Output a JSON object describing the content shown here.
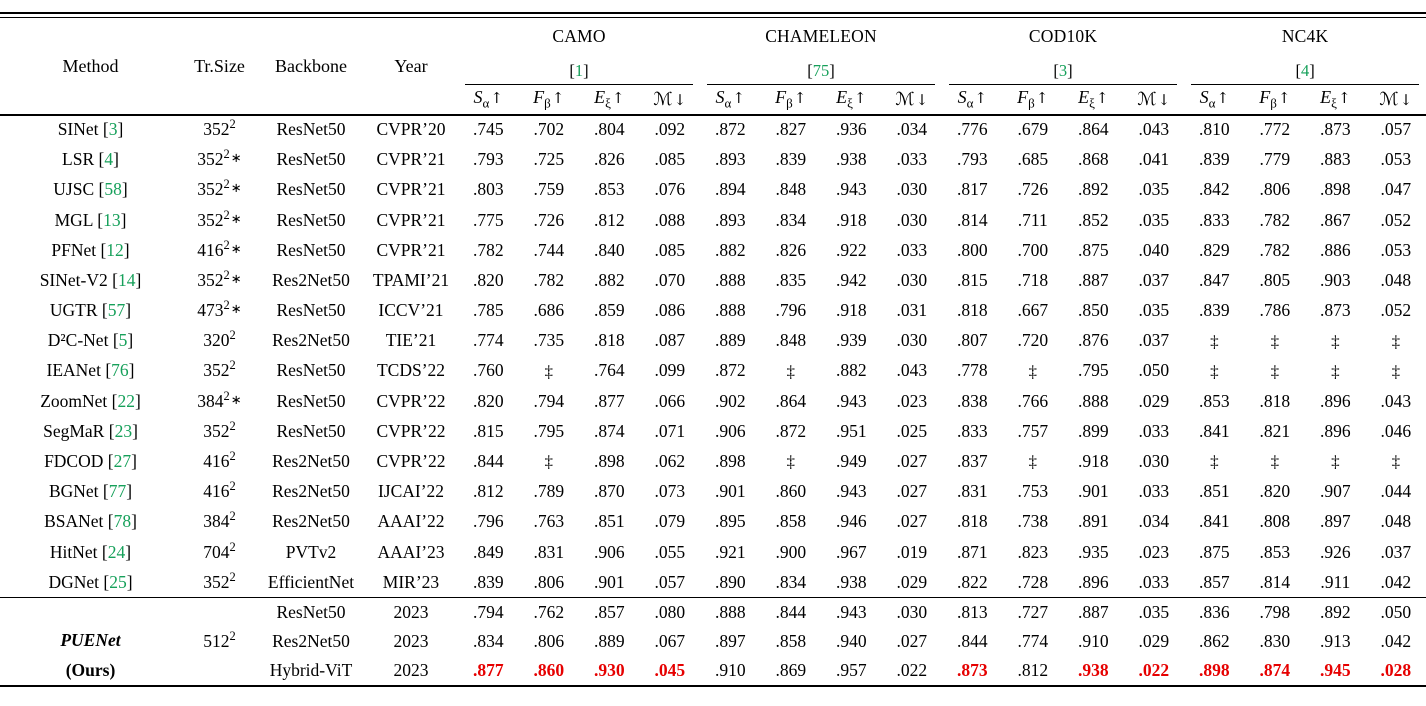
{
  "colors": {
    "cite_green": "#16a05a",
    "best_red": "#e60000",
    "text": "#000000"
  },
  "format": {
    "cite_open": "[",
    "cite_close": "]",
    "size_exp": "2",
    "star_char": "∗",
    "missing_marker": "‡"
  },
  "header": {
    "label_columns": [
      "Method",
      "Tr.Size",
      "Backbone",
      "Year"
    ],
    "dataset_groups": [
      {
        "name": "CAMO",
        "cite": "1"
      },
      {
        "name": "CHAMELEON",
        "cite": "75"
      },
      {
        "name": "COD10K",
        "cite": "3"
      },
      {
        "name": "NC4K",
        "cite": "4"
      }
    ],
    "metrics": [
      {
        "key": "s-alpha",
        "symbol": "S",
        "sub": "α",
        "dir": "↑",
        "script": false
      },
      {
        "key": "f-beta",
        "symbol": "F",
        "sub": "β",
        "dir": "↑",
        "script": false
      },
      {
        "key": "e-xi",
        "symbol": "E",
        "sub": "ξ",
        "dir": "↑",
        "script": false
      },
      {
        "key": "mae",
        "symbol": "ℳ",
        "sub": "",
        "dir": "↓",
        "script": true
      }
    ]
  },
  "rows": [
    {
      "method": "SINet",
      "cite": "3",
      "size": "352",
      "star": false,
      "backbone": "ResNet50",
      "year": "CVPR’20",
      "values": [
        ".745",
        ".702",
        ".804",
        ".092",
        ".872",
        ".827",
        ".936",
        ".034",
        ".776",
        ".679",
        ".864",
        ".043",
        ".810",
        ".772",
        ".873",
        ".057"
      ]
    },
    {
      "method": "LSR",
      "cite": "4",
      "size": "352",
      "star": true,
      "backbone": "ResNet50",
      "year": "CVPR’21",
      "values": [
        ".793",
        ".725",
        ".826",
        ".085",
        ".893",
        ".839",
        ".938",
        ".033",
        ".793",
        ".685",
        ".868",
        ".041",
        ".839",
        ".779",
        ".883",
        ".053"
      ]
    },
    {
      "method": "UJSC",
      "cite": "58",
      "size": "352",
      "star": true,
      "backbone": "ResNet50",
      "year": "CVPR’21",
      "values": [
        ".803",
        ".759",
        ".853",
        ".076",
        ".894",
        ".848",
        ".943",
        ".030",
        ".817",
        ".726",
        ".892",
        ".035",
        ".842",
        ".806",
        ".898",
        ".047"
      ]
    },
    {
      "method": "MGL",
      "cite": "13",
      "size": "352",
      "star": true,
      "backbone": "ResNet50",
      "year": "CVPR’21",
      "values": [
        ".775",
        ".726",
        ".812",
        ".088",
        ".893",
        ".834",
        ".918",
        ".030",
        ".814",
        ".711",
        ".852",
        ".035",
        ".833",
        ".782",
        ".867",
        ".052"
      ]
    },
    {
      "method": "PFNet",
      "cite": "12",
      "size": "416",
      "star": true,
      "backbone": "ResNet50",
      "year": "CVPR’21",
      "values": [
        ".782",
        ".744",
        ".840",
        ".085",
        ".882",
        ".826",
        ".922",
        ".033",
        ".800",
        ".700",
        ".875",
        ".040",
        ".829",
        ".782",
        ".886",
        ".053"
      ]
    },
    {
      "method": "SINet-V2",
      "cite": "14",
      "size": "352",
      "star": true,
      "backbone": "Res2Net50",
      "year": "TPAMI’21",
      "values": [
        ".820",
        ".782",
        ".882",
        ".070",
        ".888",
        ".835",
        ".942",
        ".030",
        ".815",
        ".718",
        ".887",
        ".037",
        ".847",
        ".805",
        ".903",
        ".048"
      ]
    },
    {
      "method": "UGTR",
      "cite": "57",
      "size": "473",
      "star": true,
      "backbone": "ResNet50",
      "year": "ICCV’21",
      "values": [
        ".785",
        ".686",
        ".859",
        ".086",
        ".888",
        ".796",
        ".918",
        ".031",
        ".818",
        ".667",
        ".850",
        ".035",
        ".839",
        ".786",
        ".873",
        ".052"
      ]
    },
    {
      "method": "D²C-Net",
      "cite": "5",
      "size": "320",
      "star": false,
      "backbone": "Res2Net50",
      "year": "TIE’21",
      "values": [
        ".774",
        ".735",
        ".818",
        ".087",
        ".889",
        ".848",
        ".939",
        ".030",
        ".807",
        ".720",
        ".876",
        ".037",
        "‡",
        "‡",
        "‡",
        "‡"
      ]
    },
    {
      "method": "IEANet",
      "cite": "76",
      "size": "352",
      "star": false,
      "backbone": "ResNet50",
      "year": "TCDS’22",
      "values": [
        ".760",
        "‡",
        ".764",
        ".099",
        ".872",
        "‡",
        ".882",
        ".043",
        ".778",
        "‡",
        ".795",
        ".050",
        "‡",
        "‡",
        "‡",
        "‡"
      ]
    },
    {
      "method": "ZoomNet",
      "cite": "22",
      "size": "384",
      "star": true,
      "backbone": "ResNet50",
      "year": "CVPR’22",
      "values": [
        ".820",
        ".794",
        ".877",
        ".066",
        ".902",
        ".864",
        ".943",
        ".023",
        ".838",
        ".766",
        ".888",
        ".029",
        ".853",
        ".818",
        ".896",
        ".043"
      ]
    },
    {
      "method": "SegMaR",
      "cite": "23",
      "size": "352",
      "star": false,
      "backbone": "ResNet50",
      "year": "CVPR’22",
      "values": [
        ".815",
        ".795",
        ".874",
        ".071",
        ".906",
        ".872",
        ".951",
        ".025",
        ".833",
        ".757",
        ".899",
        ".033",
        ".841",
        ".821",
        ".896",
        ".046"
      ]
    },
    {
      "method": "FDCOD",
      "cite": "27",
      "size": "416",
      "star": false,
      "backbone": "Res2Net50",
      "year": "CVPR’22",
      "values": [
        ".844",
        "‡",
        ".898",
        ".062",
        ".898",
        "‡",
        ".949",
        ".027",
        ".837",
        "‡",
        ".918",
        ".030",
        "‡",
        "‡",
        "‡",
        "‡"
      ]
    },
    {
      "method": "BGNet",
      "cite": "77",
      "size": "416",
      "star": false,
      "backbone": "Res2Net50",
      "year": "IJCAI’22",
      "values": [
        ".812",
        ".789",
        ".870",
        ".073",
        ".901",
        ".860",
        ".943",
        ".027",
        ".831",
        ".753",
        ".901",
        ".033",
        ".851",
        ".820",
        ".907",
        ".044"
      ]
    },
    {
      "method": "BSANet",
      "cite": "78",
      "size": "384",
      "star": false,
      "backbone": "Res2Net50",
      "year": "AAAI’22",
      "values": [
        ".796",
        ".763",
        ".851",
        ".079",
        ".895",
        ".858",
        ".946",
        ".027",
        ".818",
        ".738",
        ".891",
        ".034",
        ".841",
        ".808",
        ".897",
        ".048"
      ]
    },
    {
      "method": "HitNet",
      "cite": "24",
      "size": "704",
      "star": false,
      "backbone": "PVTv2",
      "year": "AAAI’23",
      "values": [
        ".849",
        ".831",
        ".906",
        ".055",
        ".921",
        ".900",
        ".967",
        ".019",
        ".871",
        ".823",
        ".935",
        ".023",
        ".875",
        ".853",
        ".926",
        ".037"
      ]
    },
    {
      "method": "DGNet",
      "cite": "25",
      "size": "352",
      "star": false,
      "backbone": "EfficientNet",
      "year": "MIR’23",
      "values": [
        ".839",
        ".806",
        ".901",
        ".057",
        ".890",
        ".834",
        ".938",
        ".029",
        ".822",
        ".728",
        ".896",
        ".033",
        ".857",
        ".814",
        ".911",
        ".042"
      ]
    }
  ],
  "ours": {
    "method": "PUENet",
    "method_suffix": "(Ours)",
    "size": "512",
    "rows": [
      {
        "backbone": "ResNet50",
        "year": "2023",
        "values": [
          ".794",
          ".762",
          ".857",
          ".080",
          ".888",
          ".844",
          ".943",
          ".030",
          ".813",
          ".727",
          ".887",
          ".035",
          ".836",
          ".798",
          ".892",
          ".050"
        ],
        "red": []
      },
      {
        "backbone": "Res2Net50",
        "year": "2023",
        "values": [
          ".834",
          ".806",
          ".889",
          ".067",
          ".897",
          ".858",
          ".940",
          ".027",
          ".844",
          ".774",
          ".910",
          ".029",
          ".862",
          ".830",
          ".913",
          ".042"
        ],
        "red": []
      },
      {
        "backbone": "Hybrid-ViT",
        "year": "2023",
        "values": [
          ".877",
          ".860",
          ".930",
          ".045",
          ".910",
          ".869",
          ".957",
          ".022",
          ".873",
          ".812",
          ".938",
          ".022",
          ".898",
          ".874",
          ".945",
          ".028"
        ],
        "red": [
          0,
          1,
          2,
          3,
          8,
          10,
          11,
          12,
          13,
          14,
          15
        ]
      }
    ]
  }
}
